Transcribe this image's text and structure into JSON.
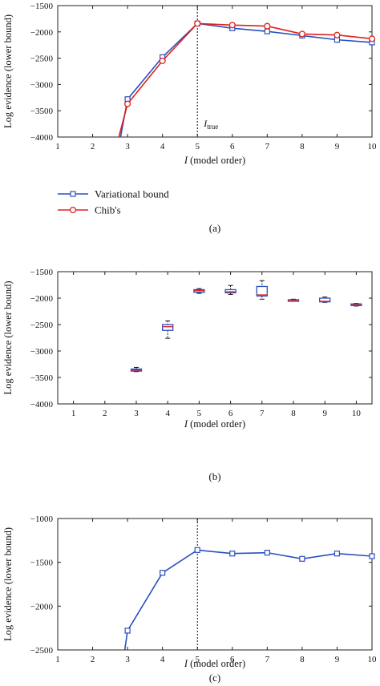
{
  "chart_data": [
    {
      "id": "a",
      "type": "line",
      "panel_label": "(a)",
      "xlabel_var": "I",
      "xlabel_rest": " (model order)",
      "ylabel": "Log evidence (lower bound)",
      "xlim": [
        1,
        10
      ],
      "ylim": [
        -4000,
        -1500
      ],
      "xticks": [
        1,
        2,
        3,
        4,
        5,
        6,
        7,
        8,
        9,
        10
      ],
      "yticks": [
        -4000,
        -3500,
        -3000,
        -2500,
        -2000,
        -1500
      ],
      "vline": {
        "x": 5,
        "label_main": "I",
        "label_sub": "true"
      },
      "legend": {
        "placement": "below-plot"
      },
      "series": [
        {
          "name": "Variational bound",
          "color": "#2a4fbf",
          "marker": "square",
          "x": [
            2.8,
            3,
            4,
            5,
            6,
            7,
            8,
            9,
            10
          ],
          "y": [
            -4000,
            -3280,
            -2480,
            -1840,
            -1930,
            -1990,
            -2070,
            -2150,
            -2200
          ]
        },
        {
          "name": "Chib's",
          "color": "#e0201c",
          "marker": "circle",
          "x": [
            2.75,
            3,
            4,
            5,
            6,
            7,
            8,
            9,
            10
          ],
          "y": [
            -4000,
            -3370,
            -2550,
            -1840,
            -1870,
            -1890,
            -2040,
            -2060,
            -2130
          ]
        }
      ]
    },
    {
      "id": "b",
      "type": "box",
      "panel_label": "(b)",
      "xlabel_var": "I",
      "xlabel_rest": " (model order)",
      "ylabel": "Log evidence (lower bound)",
      "xlim": [
        0.5,
        10.5
      ],
      "ylim": [
        -4000,
        -1500
      ],
      "xticks": [
        1,
        2,
        3,
        4,
        5,
        6,
        7,
        8,
        9,
        10
      ],
      "yticks": [
        -4000,
        -3500,
        -3000,
        -2500,
        -2000,
        -1500
      ],
      "box_color": "#2a4fbf",
      "median_color": "#e0201c",
      "boxes": [
        {
          "x": 3,
          "min": -3390,
          "q1": -3380,
          "median": -3360,
          "q3": -3340,
          "max": -3310
        },
        {
          "x": 4,
          "min": -2760,
          "q1": -2610,
          "median": -2540,
          "q3": -2500,
          "max": -2430
        },
        {
          "x": 5,
          "min": -1910,
          "q1": -1890,
          "median": -1860,
          "q3": -1840,
          "max": -1820
        },
        {
          "x": 6,
          "min": -1930,
          "q1": -1900,
          "median": -1880,
          "q3": -1840,
          "max": -1760
        },
        {
          "x": 7,
          "min": -2020,
          "q1": -1960,
          "median": -1940,
          "q3": -1780,
          "max": -1670
        },
        {
          "x": 8,
          "min": -2060,
          "q1": -2050,
          "median": -2040,
          "q3": -2030,
          "max": -2020
        },
        {
          "x": 9,
          "min": -2080,
          "q1": -2070,
          "median": -2060,
          "q3": -2000,
          "max": -1980
        },
        {
          "x": 10,
          "min": -2150,
          "q1": -2140,
          "median": -2130,
          "q3": -2110,
          "max": -2100
        }
      ]
    },
    {
      "id": "c",
      "type": "line",
      "panel_label": "(c)",
      "xlabel_var": "I",
      "xlabel_rest": " (model order)",
      "ylabel": "Log evidence (lower bound)",
      "xlim": [
        1,
        10
      ],
      "ylim": [
        -2500,
        -1000
      ],
      "xticks": [
        1,
        2,
        3,
        4,
        5,
        6,
        7,
        8,
        9,
        10
      ],
      "yticks": [
        -2500,
        -2000,
        -1500,
        -1000
      ],
      "vline": {
        "x": 5
      },
      "series": [
        {
          "name": "",
          "color": "#2a4fbf",
          "marker": "square",
          "x": [
            2.92,
            3,
            4,
            5,
            6,
            7,
            8,
            9,
            10
          ],
          "y": [
            -2500,
            -2280,
            -1620,
            -1360,
            -1400,
            -1390,
            -1460,
            -1400,
            -1430
          ]
        }
      ]
    }
  ]
}
